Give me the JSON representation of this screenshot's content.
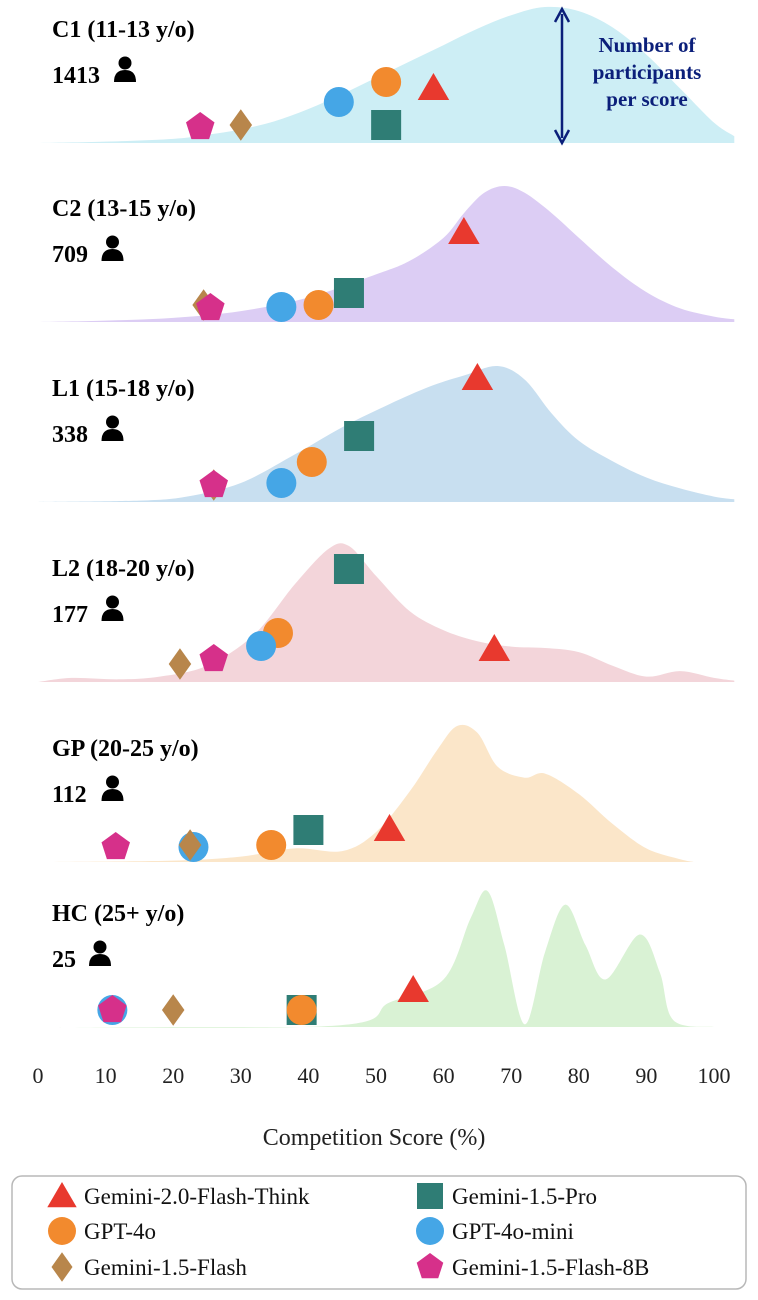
{
  "chart_data": {
    "type": "ridgeline",
    "xlabel": "Competition Score (%)",
    "xlim": [
      0,
      103
    ],
    "x_ticks": [
      "0",
      "10",
      "20",
      "30",
      "40",
      "50",
      "60",
      "70",
      "80",
      "90",
      "100"
    ],
    "annotation": [
      "Number of",
      "participants",
      "per score"
    ],
    "legend": [
      {
        "name": "Gemini-2.0-Flash-Think",
        "marker": "triangle",
        "color": "#e8392e"
      },
      {
        "name": "Gemini-1.5-Pro",
        "marker": "square",
        "color": "#2f7d75"
      },
      {
        "name": "GPT-4o",
        "marker": "circle",
        "color": "#f28a2e"
      },
      {
        "name": "GPT-4o-mini",
        "marker": "circle",
        "color": "#45a6e6"
      },
      {
        "name": "Gemini-1.5-Flash",
        "marker": "diamond",
        "color": "#b8864b"
      },
      {
        "name": "Gemini-1.5-Flash-8B",
        "marker": "pentagon",
        "color": "#d6308a"
      }
    ],
    "groups": [
      {
        "label": "C1 (11-13 y/o)",
        "count": "1413",
        "fill": "#cdeef5",
        "density": [
          [
            0,
            0
          ],
          [
            10,
            0.01
          ],
          [
            20,
            0.03
          ],
          [
            25,
            0.06
          ],
          [
            30,
            0.1
          ],
          [
            35,
            0.16
          ],
          [
            40,
            0.25
          ],
          [
            45,
            0.36
          ],
          [
            50,
            0.48
          ],
          [
            55,
            0.6
          ],
          [
            60,
            0.72
          ],
          [
            65,
            0.84
          ],
          [
            70,
            0.94
          ],
          [
            75,
            1.0
          ],
          [
            80,
            0.97
          ],
          [
            85,
            0.85
          ],
          [
            90,
            0.65
          ],
          [
            95,
            0.4
          ],
          [
            100,
            0.15
          ],
          [
            103,
            0.05
          ]
        ],
        "models": {
          "Gemini-2.0-Flash-Think": 58.5,
          "Gemini-1.5-Pro": 51.5,
          "GPT-4o": 51.5,
          "GPT-4o-mini": 44.5,
          "Gemini-1.5-Flash": 30.0,
          "Gemini-1.5-Flash-8B": 24.0
        }
      },
      {
        "label": "C2 (13-15 y/o)",
        "count": "709",
        "fill": "#dccdf4",
        "density": [
          [
            0,
            0
          ],
          [
            10,
            0.01
          ],
          [
            20,
            0.03
          ],
          [
            30,
            0.08
          ],
          [
            40,
            0.18
          ],
          [
            50,
            0.35
          ],
          [
            55,
            0.45
          ],
          [
            60,
            0.62
          ],
          [
            63,
            0.8
          ],
          [
            66,
            0.95
          ],
          [
            69,
            1.0
          ],
          [
            72,
            0.95
          ],
          [
            76,
            0.8
          ],
          [
            80,
            0.62
          ],
          [
            85,
            0.4
          ],
          [
            90,
            0.22
          ],
          [
            95,
            0.1
          ],
          [
            100,
            0.04
          ],
          [
            103,
            0.02
          ]
        ],
        "models": {
          "Gemini-2.0-Flash-Think": 63.0,
          "Gemini-1.5-Pro": 46.0,
          "GPT-4o": 41.5,
          "GPT-4o-mini": 36.0,
          "Gemini-1.5-Flash": 24.5,
          "Gemini-1.5-Flash-8B": 25.5
        }
      },
      {
        "label": "L1 (15-18 y/o)",
        "count": "338",
        "fill": "#c8dff0",
        "density": [
          [
            0,
            0
          ],
          [
            15,
            0.01
          ],
          [
            22,
            0.04
          ],
          [
            30,
            0.14
          ],
          [
            38,
            0.35
          ],
          [
            45,
            0.55
          ],
          [
            52,
            0.72
          ],
          [
            58,
            0.85
          ],
          [
            63,
            0.93
          ],
          [
            68,
            1.0
          ],
          [
            72,
            0.9
          ],
          [
            76,
            0.65
          ],
          [
            80,
            0.45
          ],
          [
            85,
            0.3
          ],
          [
            90,
            0.18
          ],
          [
            95,
            0.1
          ],
          [
            100,
            0.04
          ],
          [
            103,
            0.02
          ]
        ],
        "models": {
          "Gemini-2.0-Flash-Think": 65.0,
          "Gemini-1.5-Pro": 47.5,
          "GPT-4o": 40.5,
          "GPT-4o-mini": 36.0,
          "Gemini-1.5-Flash": 26.0,
          "Gemini-1.5-Flash-8B": 26.0
        }
      },
      {
        "label": "L2 (18-20 y/o)",
        "count": "177",
        "fill": "#f3d5da",
        "density": [
          [
            0,
            0
          ],
          [
            5,
            0.03
          ],
          [
            12,
            0.02
          ],
          [
            18,
            0.04
          ],
          [
            25,
            0.12
          ],
          [
            32,
            0.35
          ],
          [
            38,
            0.72
          ],
          [
            43,
            0.98
          ],
          [
            46,
            1.0
          ],
          [
            50,
            0.78
          ],
          [
            55,
            0.52
          ],
          [
            60,
            0.38
          ],
          [
            65,
            0.3
          ],
          [
            70,
            0.26
          ],
          [
            75,
            0.25
          ],
          [
            80,
            0.22
          ],
          [
            85,
            0.12
          ],
          [
            90,
            0.04
          ],
          [
            95,
            0.08
          ],
          [
            100,
            0.03
          ],
          [
            103,
            0.01
          ]
        ],
        "models": {
          "Gemini-2.0-Flash-Think": 67.5,
          "Gemini-1.5-Pro": 46.0,
          "GPT-4o": 35.5,
          "GPT-4o-mini": 33.0,
          "Gemini-1.5-Flash": 21.0,
          "Gemini-1.5-Flash-8B": 26.0
        }
      },
      {
        "label": "GP (20-25 y/o)",
        "count": "112",
        "fill": "#fbe6c9",
        "density": [
          [
            0,
            0
          ],
          [
            20,
            0.01
          ],
          [
            30,
            0.04
          ],
          [
            38,
            0.1
          ],
          [
            45,
            0.08
          ],
          [
            50,
            0.22
          ],
          [
            55,
            0.52
          ],
          [
            59,
            0.82
          ],
          [
            62,
            1.0
          ],
          [
            65,
            0.95
          ],
          [
            68,
            0.7
          ],
          [
            72,
            0.62
          ],
          [
            75,
            0.65
          ],
          [
            80,
            0.5
          ],
          [
            85,
            0.28
          ],
          [
            90,
            0.1
          ],
          [
            95,
            0.02
          ],
          [
            97,
            0
          ]
        ],
        "models": {
          "Gemini-2.0-Flash-Think": 52.0,
          "Gemini-1.5-Pro": 40.0,
          "GPT-4o": 34.5,
          "GPT-4o-mini": 23.0,
          "Gemini-1.5-Flash": 22.5,
          "Gemini-1.5-Flash-8B": 11.5
        }
      },
      {
        "label": "HC (25+ y/o)",
        "count": "25",
        "fill": "#d9f2d4",
        "density": [
          [
            0,
            0
          ],
          [
            44,
            0.01
          ],
          [
            52,
            0.18
          ],
          [
            60,
            0.35
          ],
          [
            64,
            0.8
          ],
          [
            66.5,
            1.0
          ],
          [
            69,
            0.6
          ],
          [
            72,
            0.02
          ],
          [
            75,
            0.55
          ],
          [
            78,
            0.9
          ],
          [
            81,
            0.6
          ],
          [
            84,
            0.35
          ],
          [
            89,
            0.68
          ],
          [
            92,
            0.4
          ],
          [
            94,
            0.05
          ],
          [
            100,
            0
          ]
        ],
        "models": {
          "Gemini-2.0-Flash-Think": 55.5,
          "Gemini-1.5-Pro": 39.0,
          "GPT-4o": 39.0,
          "GPT-4o-mini": 11.0,
          "Gemini-1.5-Flash": 20.0,
          "Gemini-1.5-Flash-8B": 11.0
        }
      }
    ]
  }
}
